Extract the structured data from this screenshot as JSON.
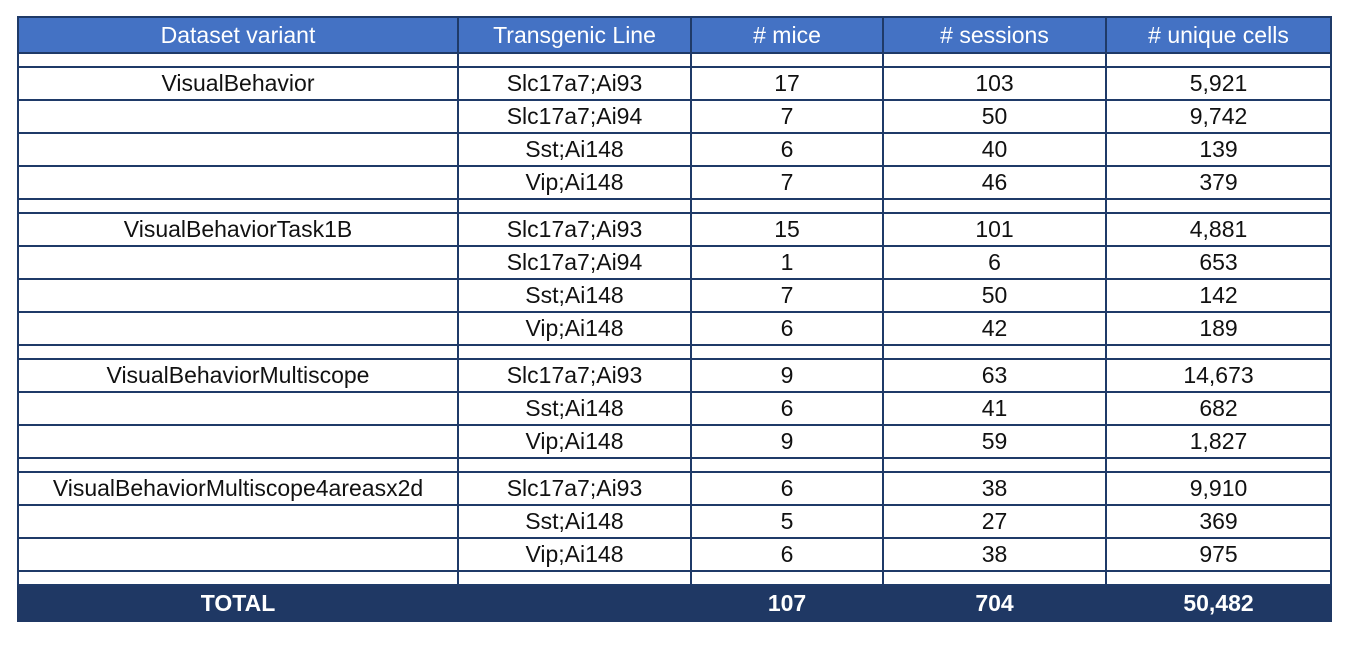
{
  "headers": [
    "Dataset variant",
    "Transgenic Line",
    "# mice",
    "# sessions",
    "# unique cells"
  ],
  "groups": [
    {
      "variant": "VisualBehavior",
      "rows": [
        {
          "line": "Slc17a7;Ai93",
          "mice": "17",
          "sessions": "103",
          "cells": "5,921"
        },
        {
          "line": "Slc17a7;Ai94",
          "mice": "7",
          "sessions": "50",
          "cells": "9,742"
        },
        {
          "line": "Sst;Ai148",
          "mice": "6",
          "sessions": "40",
          "cells": "139"
        },
        {
          "line": "Vip;Ai148",
          "mice": "7",
          "sessions": "46",
          "cells": "379"
        }
      ]
    },
    {
      "variant": "VisualBehaviorTask1B",
      "rows": [
        {
          "line": "Slc17a7;Ai93",
          "mice": "15",
          "sessions": "101",
          "cells": "4,881"
        },
        {
          "line": "Slc17a7;Ai94",
          "mice": "1",
          "sessions": "6",
          "cells": "653"
        },
        {
          "line": "Sst;Ai148",
          "mice": "7",
          "sessions": "50",
          "cells": "142"
        },
        {
          "line": "Vip;Ai148",
          "mice": "6",
          "sessions": "42",
          "cells": "189"
        }
      ]
    },
    {
      "variant": "VisualBehaviorMultiscope",
      "rows": [
        {
          "line": "Slc17a7;Ai93",
          "mice": "9",
          "sessions": "63",
          "cells": "14,673"
        },
        {
          "line": "Sst;Ai148",
          "mice": "6",
          "sessions": "41",
          "cells": "682"
        },
        {
          "line": "Vip;Ai148",
          "mice": "9",
          "sessions": "59",
          "cells": "1,827"
        }
      ]
    },
    {
      "variant": "VisualBehaviorMultiscope4areasx2d",
      "rows": [
        {
          "line": "Slc17a7;Ai93",
          "mice": "6",
          "sessions": "38",
          "cells": "9,910"
        },
        {
          "line": "Sst;Ai148",
          "mice": "5",
          "sessions": "27",
          "cells": "369"
        },
        {
          "line": "Vip;Ai148",
          "mice": "6",
          "sessions": "38",
          "cells": "975"
        }
      ]
    }
  ],
  "total": {
    "label": "TOTAL",
    "line": "",
    "mice": "107",
    "sessions": "704",
    "cells": "50,482"
  },
  "colors": {
    "header_bg": "#4472c4",
    "total_bg": "#1f3864",
    "border": "#1f3a68"
  }
}
